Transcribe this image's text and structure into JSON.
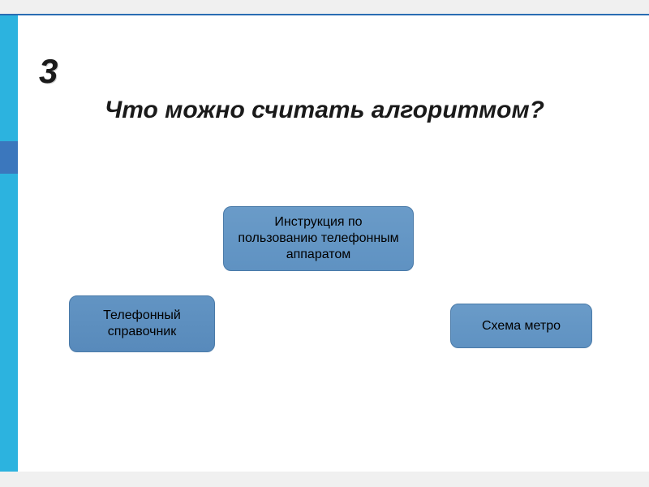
{
  "slide": {
    "number": "3",
    "title": "Что можно считать алгоритмом?",
    "options": {
      "top": "Инструкция по пользованию телефонным аппаратом",
      "left": "Телефонный справочник",
      "right": "Схема метро"
    }
  },
  "style": {
    "frame_bg": "#f0f0f0",
    "slide_bg": "#ffffff",
    "top_border_color": "#2a6db3",
    "stripe_cyan": "#2cb3df",
    "stripe_blue": "#3b77bd",
    "number_color": "#1a1a1a",
    "number_fontsize": 42,
    "title_color": "#1a1a1a",
    "title_fontsize": 30,
    "box_bg_top": "#6a9bc8",
    "box_bg_bottom": "#5f92c2",
    "box_border": "#4a7aa8",
    "box_radius": 10,
    "box_fontsize": 16,
    "box_text_color": "#000000"
  }
}
